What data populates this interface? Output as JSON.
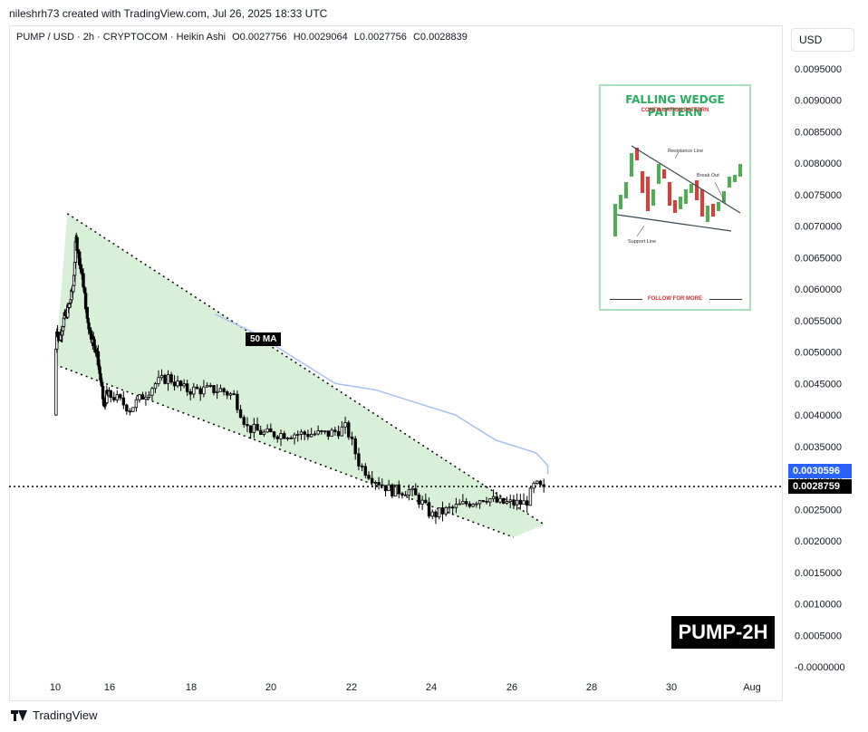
{
  "attribution": "nileshrh73 created with TradingView.com, Jul 26, 2025 18:33 UTC",
  "legend": {
    "symbol": "PUMP / USD · 2h · CRYPTOCOM · Heikin Ashi",
    "open": "O0.0027756",
    "high": "H0.0029064",
    "low": "L0.0027756",
    "close": "C0.0028839"
  },
  "currency_button": "USD",
  "ma_price_tag": "0.0030596",
  "last_price_tag": "0.0028759",
  "ma_label": "50 MA",
  "pair_badge": "PUMP-2H",
  "footer_brand": "TradingView",
  "inset": {
    "title": "FALLING WEDGE PATTERN",
    "subtitle": "CONTINUATION PATTERN",
    "resistance_label": "Resistance Line",
    "breakout_label": "Break Out",
    "support_label": "Support Line",
    "follow": "FOLLOW FOR MORE"
  },
  "colors": {
    "up_candle": "#000000",
    "down_candle": "#000000",
    "wedge_fill": "#d8efd8",
    "ma_line": "#a9c1ef",
    "ma_tag": "#2962ff",
    "inset_up": "#4caf50",
    "inset_down": "#e53935"
  },
  "chart_data": {
    "type": "candlestick",
    "x_tick_labels": [
      "10",
      "16",
      "18",
      "20",
      "22",
      "24",
      "26",
      "28",
      "30",
      "Aug"
    ],
    "y_tick_labels": [
      "0.0095000",
      "0.0090000",
      "0.0085000",
      "0.0080000",
      "0.0075000",
      "0.0070000",
      "0.0065000",
      "0.0060000",
      "0.0055000",
      "0.0050000",
      "0.0045000",
      "0.0040000",
      "0.0035000",
      "0.0030000",
      "0.0025000",
      "0.0020000",
      "0.0015000",
      "0.0010000",
      "0.0005000",
      "-0.0000000"
    ],
    "ylim": [
      0,
      0.0095
    ],
    "grid": false,
    "price_path": [
      [
        10.0,
        0.004
      ],
      [
        10.1,
        0.0054
      ],
      [
        10.4,
        0.0052
      ],
      [
        10.8,
        0.0055
      ],
      [
        11.3,
        0.0057
      ],
      [
        11.7,
        0.006
      ],
      [
        12.0,
        0.0068
      ],
      [
        12.3,
        0.0065
      ],
      [
        12.7,
        0.0061
      ],
      [
        13.1,
        0.0055
      ],
      [
        13.4,
        0.0053
      ],
      [
        13.8,
        0.0051
      ],
      [
        14.1,
        0.0049
      ],
      [
        14.4,
        0.0045
      ],
      [
        14.7,
        0.0041
      ],
      [
        14.9,
        0.0043
      ],
      [
        15.3,
        0.0043
      ],
      [
        15.7,
        0.0041
      ],
      [
        16.0,
        0.0043
      ],
      [
        16.3,
        0.0045
      ],
      [
        16.6,
        0.0046
      ],
      [
        17.0,
        0.0044
      ],
      [
        17.4,
        0.0044
      ],
      [
        17.8,
        0.0044
      ],
      [
        18.1,
        0.0043
      ],
      [
        18.4,
        0.0038
      ],
      [
        18.8,
        0.0037
      ],
      [
        19.3,
        0.0037
      ],
      [
        19.8,
        0.0037
      ],
      [
        20.2,
        0.0037
      ],
      [
        20.6,
        0.0038
      ],
      [
        20.9,
        0.0032
      ],
      [
        21.2,
        0.003
      ],
      [
        21.6,
        0.0028
      ],
      [
        22.0,
        0.0028
      ],
      [
        22.3,
        0.0026
      ],
      [
        22.5,
        0.0024
      ],
      [
        22.9,
        0.0025
      ],
      [
        23.3,
        0.0026
      ],
      [
        23.7,
        0.0027
      ],
      [
        24.0,
        0.0026
      ],
      [
        24.3,
        0.0026
      ],
      [
        24.6,
        0.0026
      ],
      [
        24.8,
        0.0029
      ],
      [
        25.0,
        0.0028
      ]
    ],
    "moving_average": {
      "name": "50 MA",
      "points": [
        [
          14.0,
          0.0056
        ],
        [
          15.0,
          0.0053
        ],
        [
          16.0,
          0.0049
        ],
        [
          17.0,
          0.0045
        ],
        [
          18.0,
          0.0044
        ],
        [
          19.0,
          0.0042
        ],
        [
          20.0,
          0.004
        ],
        [
          21.0,
          0.0036
        ],
        [
          22.0,
          0.0034
        ],
        [
          23.0,
          0.0032
        ],
        [
          24.0,
          0.0031
        ],
        [
          25.0,
          0.00306
        ]
      ]
    },
    "wedge": {
      "resistance": [
        [
          11.3,
          0.0072
        ],
        [
          26.0,
          0.0024
        ]
      ],
      "support": [
        [
          10.0,
          0.0048
        ],
        [
          25.5,
          0.002
        ]
      ]
    },
    "ma_last_value": 0.0030596,
    "last_price": 0.0028759
  }
}
